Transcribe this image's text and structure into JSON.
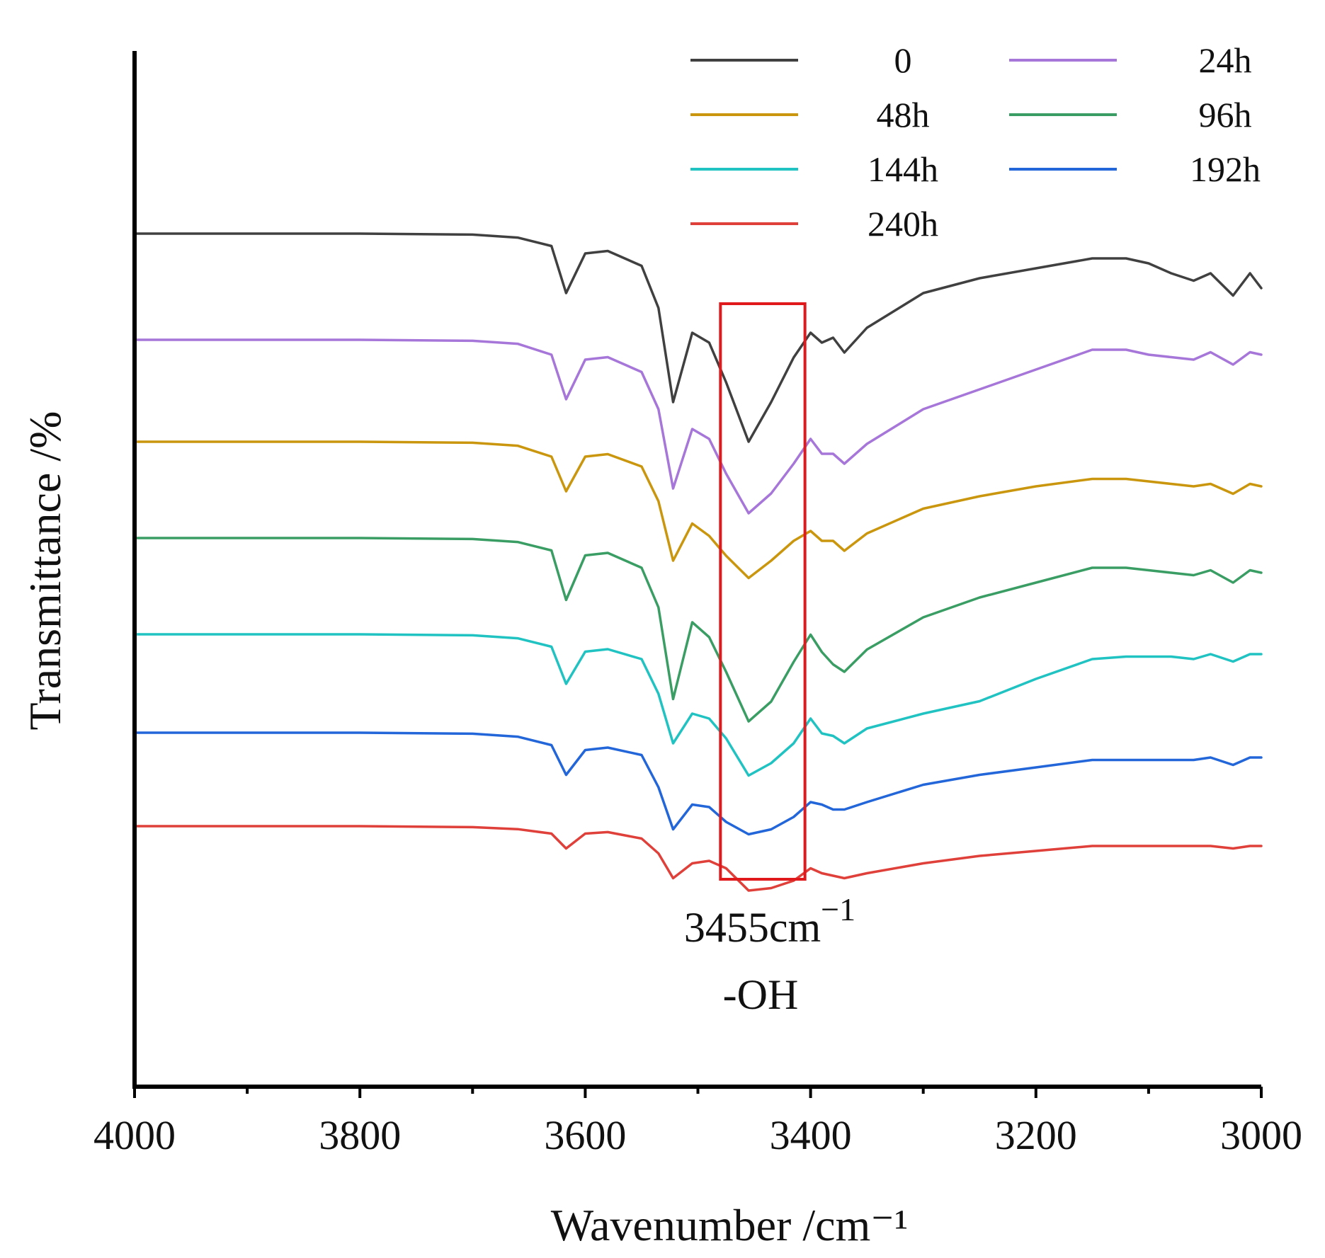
{
  "chart_data": {
    "type": "line",
    "xlabel": "Wavenumber /cm⁻¹",
    "ylabel": "Transmittance /%",
    "xlim": [
      4000,
      3000
    ],
    "x_reversed": true,
    "x_ticks": [
      4000,
      3800,
      3600,
      3400,
      3200,
      3000
    ],
    "x_minor_ticks": [
      3900,
      3700,
      3500,
      3300,
      3100
    ],
    "y_tick_labels": false,
    "grid": false,
    "legend_position": "top-right",
    "x": [
      4000,
      3900,
      3800,
      3700,
      3660,
      3630,
      3617,
      3600,
      3580,
      3550,
      3535,
      3522,
      3505,
      3490,
      3475,
      3455,
      3435,
      3415,
      3400,
      3390,
      3380,
      3370,
      3350,
      3300,
      3250,
      3200,
      3150,
      3120,
      3100,
      3080,
      3060,
      3045,
      3025,
      3010,
      3000
    ],
    "series": [
      {
        "name": "0",
        "color": "#404040",
        "values": [
          100.0,
          100.0,
          100.0,
          99.8,
          99.2,
          97.5,
          88.0,
          96.0,
          96.5,
          93.5,
          85.0,
          66.0,
          80.0,
          78.0,
          70.0,
          58.0,
          66.0,
          75.0,
          80.0,
          78.0,
          79.0,
          76.0,
          81.0,
          88.0,
          91.0,
          93.0,
          95.0,
          95.0,
          94.0,
          92.0,
          90.5,
          92.0,
          87.5,
          92.0,
          89.0
        ]
      },
      {
        "name": "24h",
        "color": "#a676d9",
        "values": [
          100.0,
          100.0,
          100.0,
          99.8,
          99.2,
          97.0,
          88.0,
          96.0,
          96.5,
          93.5,
          86.0,
          70.0,
          82.0,
          80.0,
          73.0,
          65.0,
          69.0,
          75.0,
          80.0,
          77.0,
          77.0,
          75.0,
          79.0,
          86.0,
          90.0,
          94.0,
          98.0,
          98.0,
          97.0,
          96.5,
          96.0,
          97.5,
          95.0,
          97.5,
          97.0
        ]
      },
      {
        "name": "48h",
        "color": "#c9960e",
        "values": [
          100.0,
          100.0,
          100.0,
          99.8,
          99.2,
          97.0,
          90.0,
          97.0,
          97.5,
          95.0,
          88.0,
          76.0,
          83.5,
          81.0,
          77.0,
          72.5,
          76.0,
          80.0,
          82.0,
          80.0,
          80.0,
          78.0,
          81.5,
          86.5,
          89.0,
          91.0,
          92.5,
          92.5,
          92.0,
          91.5,
          91.0,
          91.5,
          89.5,
          91.5,
          91.0
        ]
      },
      {
        "name": "96h",
        "color": "#3a9e64",
        "values": [
          100.0,
          100.0,
          100.0,
          99.8,
          99.2,
          97.5,
          87.5,
          96.5,
          97.0,
          94.0,
          86.0,
          67.5,
          83.0,
          80.0,
          73.0,
          63.0,
          67.0,
          75.0,
          80.5,
          77.0,
          74.5,
          73.0,
          77.5,
          84.0,
          88.0,
          91.0,
          94.0,
          94.0,
          93.5,
          93.0,
          92.5,
          93.5,
          91.0,
          93.5,
          93.0
        ]
      },
      {
        "name": "144h",
        "color": "#21c2c2",
        "values": [
          100.0,
          100.0,
          100.0,
          99.8,
          99.2,
          97.5,
          90.0,
          96.5,
          97.0,
          95.0,
          88.0,
          78.0,
          84.0,
          83.0,
          79.0,
          71.5,
          74.0,
          78.0,
          83.0,
          80.0,
          79.5,
          78.0,
          81.0,
          84.0,
          86.5,
          91.0,
          95.0,
          95.5,
          95.5,
          95.5,
          95.0,
          96.0,
          94.5,
          96.0,
          96.0
        ]
      },
      {
        "name": "192h",
        "color": "#2266d9",
        "values": [
          100.0,
          100.0,
          100.0,
          99.8,
          99.2,
          97.5,
          91.5,
          96.5,
          97.0,
          95.5,
          89.0,
          80.5,
          85.5,
          85.0,
          82.0,
          79.5,
          80.5,
          83.0,
          86.0,
          85.5,
          84.5,
          84.5,
          86.0,
          89.5,
          91.5,
          93.0,
          94.5,
          94.5,
          94.5,
          94.5,
          94.5,
          95.0,
          93.5,
          95.0,
          95.0
        ]
      },
      {
        "name": "240h",
        "color": "#e0403a",
        "values": [
          100.0,
          100.0,
          100.0,
          99.8,
          99.4,
          98.5,
          95.5,
          98.5,
          98.8,
          97.5,
          94.5,
          89.5,
          92.5,
          93.0,
          91.5,
          87.0,
          87.5,
          89.0,
          91.5,
          90.5,
          90.0,
          89.5,
          90.5,
          92.5,
          94.0,
          95.0,
          96.0,
          96.0,
          96.0,
          96.0,
          96.0,
          96.0,
          95.5,
          96.0,
          96.0
        ]
      }
    ],
    "annotations": [
      {
        "type": "box",
        "x_range": [
          3480,
          3405
        ],
        "color": "#e0191c",
        "text": "3455cm",
        "superscript": "−1",
        "subtext": "-OH"
      }
    ]
  }
}
